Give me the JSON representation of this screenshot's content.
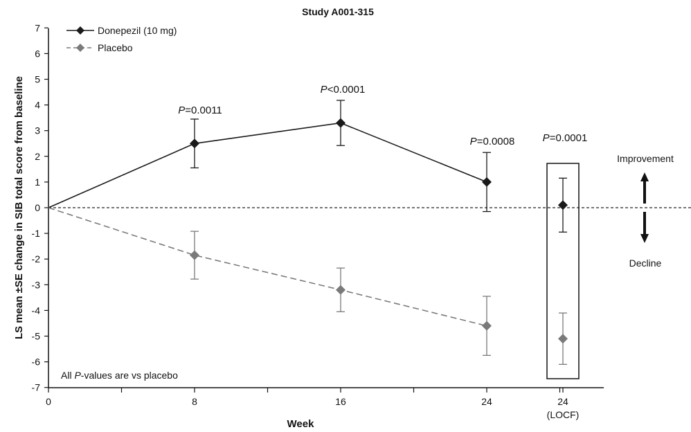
{
  "chart_data": {
    "type": "line",
    "title": "Study A001-315",
    "xlabel": "Week",
    "ylabel": "LS mean ±SE change in SIB total score from baseline",
    "ylim": [
      -7,
      7
    ],
    "y_ticks": [
      "7",
      "6",
      "5",
      "4",
      "3",
      "2",
      "1",
      "0",
      "-1",
      "-2",
      "-3",
      "-4",
      "-5",
      "-6",
      "-7"
    ],
    "x_ticks": [
      "0",
      "8",
      "16",
      "24"
    ],
    "locf_tick": "24",
    "locf_label": "(LOCF)",
    "legend_position": "top-left",
    "series": [
      {
        "name": "Donepezil (10 mg)",
        "color": "#1a1a1a",
        "x": [
          0,
          8,
          16,
          24
        ],
        "values": [
          0,
          2.5,
          3.3,
          1.0
        ],
        "se": [
          0,
          0.95,
          0.88,
          1.15
        ],
        "locf": {
          "value": 0.1,
          "se": 1.05
        }
      },
      {
        "name": "Placebo",
        "color": "#7a7a7a",
        "x": [
          0,
          8,
          16,
          24
        ],
        "values": [
          0,
          -1.85,
          -3.2,
          -4.6
        ],
        "se": [
          0,
          0.93,
          0.85,
          1.15
        ],
        "locf": {
          "value": -5.1,
          "se": 1.0
        }
      }
    ],
    "pvalues": [
      {
        "x": "8",
        "label": "P=0.0011"
      },
      {
        "x": "16",
        "label": "P<0.0001"
      },
      {
        "x": "24",
        "label": "P=0.0008"
      },
      {
        "x": "24 (LOCF)",
        "label": "P=0.0001"
      }
    ],
    "p_prefix": "P",
    "footnote_prefix": "All ",
    "footnote_italic": "P",
    "footnote_suffix": "-values are vs placebo",
    "improvement_label": "Improvement",
    "decline_label": "Decline"
  }
}
